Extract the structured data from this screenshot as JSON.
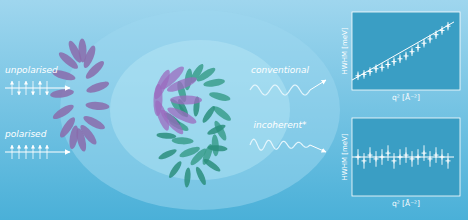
{
  "chart_data": [
    {
      "type": "scatter",
      "annotations": [
        "unpolarised",
        "conventional"
      ],
      "xlabel": "q² [Å⁻²]",
      "ylabel": "HWHM [meV]",
      "xlim": [
        0,
        9
      ],
      "ylim": [
        -0.5,
        5
      ],
      "tick_labels": false,
      "series": [
        {
          "type": "scatter",
          "color": "#ffffff",
          "marker": "plus",
          "x": [
            0.5,
            1.0,
            1.5,
            2.0,
            2.5,
            3.0,
            3.5,
            4.0,
            4.5,
            5.0,
            5.5,
            6.0,
            6.5,
            7.0,
            7.5,
            8.0
          ],
          "values": [
            0.5,
            0.6,
            0.8,
            1.0,
            1.1,
            1.3,
            1.5,
            1.7,
            1.9,
            2.2,
            2.5,
            2.8,
            3.1,
            3.4,
            3.7,
            4.0
          ],
          "errors": [
            0.3,
            0.3,
            0.3,
            0.3,
            0.3,
            0.3,
            0.3,
            0.3,
            0.3,
            0.3,
            0.3,
            0.3,
            0.3,
            0.3,
            0.3,
            0.3
          ]
        },
        {
          "type": "line",
          "color": "#ffffff",
          "line_style": "solid",
          "x": [
            0.0,
            8.5
          ],
          "values": [
            0.2,
            4.3
          ]
        }
      ]
    },
    {
      "type": "scatter",
      "annotations": [
        "polarised",
        "incoherent*"
      ],
      "xlabel": "q² [Å⁻²]",
      "ylabel": "HWHM [meV]",
      "xlim": [
        0,
        9
      ],
      "ylim": [
        0,
        4
      ],
      "tick_labels": false,
      "series": [
        {
          "type": "scatter",
          "color": "#ffffff",
          "marker": "plus",
          "x": [
            0.5,
            1.0,
            1.5,
            2.0,
            2.5,
            3.0,
            3.5,
            4.0,
            4.5,
            5.0,
            5.5,
            6.0,
            6.5,
            7.0,
            7.5,
            8.0
          ],
          "values": [
            2.0,
            1.8,
            2.1,
            1.9,
            2.0,
            2.2,
            1.8,
            2.0,
            2.1,
            1.9,
            2.0,
            2.2,
            1.9,
            2.1,
            2.0,
            1.8
          ],
          "errors": [
            0.4,
            0.4,
            0.4,
            0.4,
            0.4,
            0.4,
            0.4,
            0.4,
            0.4,
            0.4,
            0.4,
            0.4,
            0.4,
            0.4,
            0.4,
            0.4
          ]
        },
        {
          "type": "line",
          "color": "#ffffff",
          "line_style": "solid",
          "x": [
            0.0,
            8.5
          ],
          "values": [
            2.0,
            2.0
          ]
        }
      ]
    }
  ]
}
